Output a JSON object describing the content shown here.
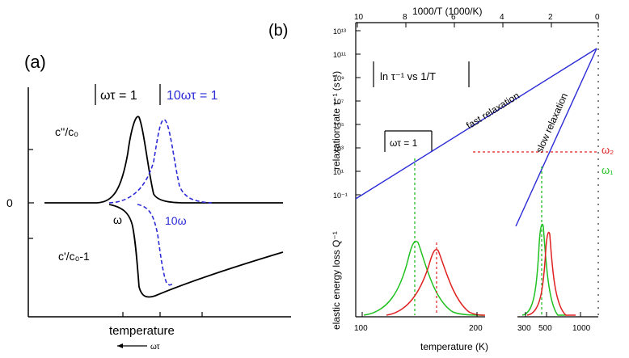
{
  "panel_a": {
    "label": "(a)",
    "omega_tau_label": "ωτ = 1",
    "ten_omega_tau_label": "10ωτ = 1",
    "loss_label": "c''/c₀",
    "zero_label": "0",
    "omega_label": "ω",
    "ten_omega_label": "10ω",
    "modulus_label": "c'/c₀-1",
    "x_axis_label": "temperature",
    "arrow_label": "ωτ"
  },
  "panel_b": {
    "label": "(b)",
    "top_axis_title": "1000/T  (1000/K)",
    "top_ticks": [
      "10",
      "8",
      "6",
      "4",
      "2",
      "0"
    ],
    "left_axis_title": "relaxation rate τ⁻¹ (s⁻¹)",
    "left_ticks": [
      "10¹³",
      "10¹¹",
      "10⁹",
      "10⁷",
      "10⁵",
      "10³",
      "10¹",
      "10⁻¹"
    ],
    "legend_text": "ln τ⁻¹ vs 1/T",
    "omega_tau_text": "ωτ = 1",
    "fast_label": "fast relaxation",
    "slow_label": "slow relaxation",
    "omega2": "ω₂",
    "omega1": "ω₁",
    "loss_axis_title": "elastic energy loss  Q⁻¹",
    "bottom_ticks": [
      "100",
      "200",
      "300",
      "500",
      "1000"
    ],
    "bottom_axis_title": "temperature (K)",
    "colors": {
      "blue": "#2b2bd8",
      "red": "#e02020",
      "green": "#20c020",
      "black": "#000000"
    }
  }
}
